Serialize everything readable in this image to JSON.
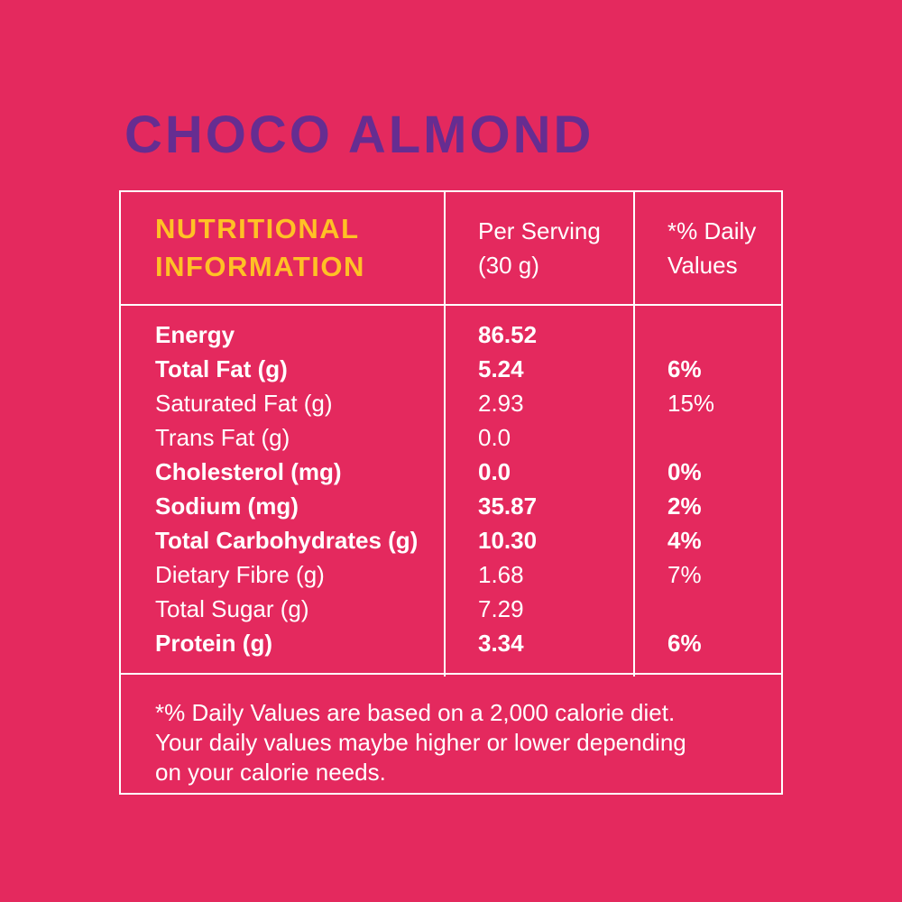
{
  "colors": {
    "background": "#e4295e",
    "title_purple": "#662d91",
    "header_yellow": "#ffc125",
    "text_white": "#ffffff",
    "border_white": "#ffffff"
  },
  "title": "CHOCO ALMOND",
  "table": {
    "header": {
      "col1": "NUTRITIONAL INFORMATION",
      "col2": "Per Serving (30 g)",
      "col3": "*% Daily Values"
    },
    "rows": [
      {
        "label": "Energy",
        "per_serving": "86.52",
        "daily_value": "",
        "bold": true
      },
      {
        "label": "Total Fat (g)",
        "per_serving": "5.24",
        "daily_value": "6%",
        "bold": true
      },
      {
        "label": "Saturated Fat (g)",
        "per_serving": "2.93",
        "daily_value": "15%",
        "bold": false
      },
      {
        "label": "Trans Fat (g)",
        "per_serving": "0.0",
        "daily_value": "",
        "bold": false
      },
      {
        "label": "Cholesterol (mg)",
        "per_serving": "0.0",
        "daily_value": "0%",
        "bold": true
      },
      {
        "label": "Sodium (mg)",
        "per_serving": "35.87",
        "daily_value": "2%",
        "bold": true
      },
      {
        "label": "Total Carbohydrates (g)",
        "per_serving": "10.30",
        "daily_value": "4%",
        "bold": true
      },
      {
        "label": "Dietary Fibre (g)",
        "per_serving": "1.68",
        "daily_value": "7%",
        "bold": false
      },
      {
        "label": "Total Sugar (g)",
        "per_serving": "7.29",
        "daily_value": "",
        "bold": false
      },
      {
        "label": "Protein (g)",
        "per_serving": "3.34",
        "daily_value": "6%",
        "bold": true
      }
    ],
    "footnote": {
      "line1": "*% Daily Values are based on a 2,000 calorie diet.",
      "line2": "Your daily values maybe higher or lower depending",
      "line3": "on your calorie needs."
    }
  }
}
